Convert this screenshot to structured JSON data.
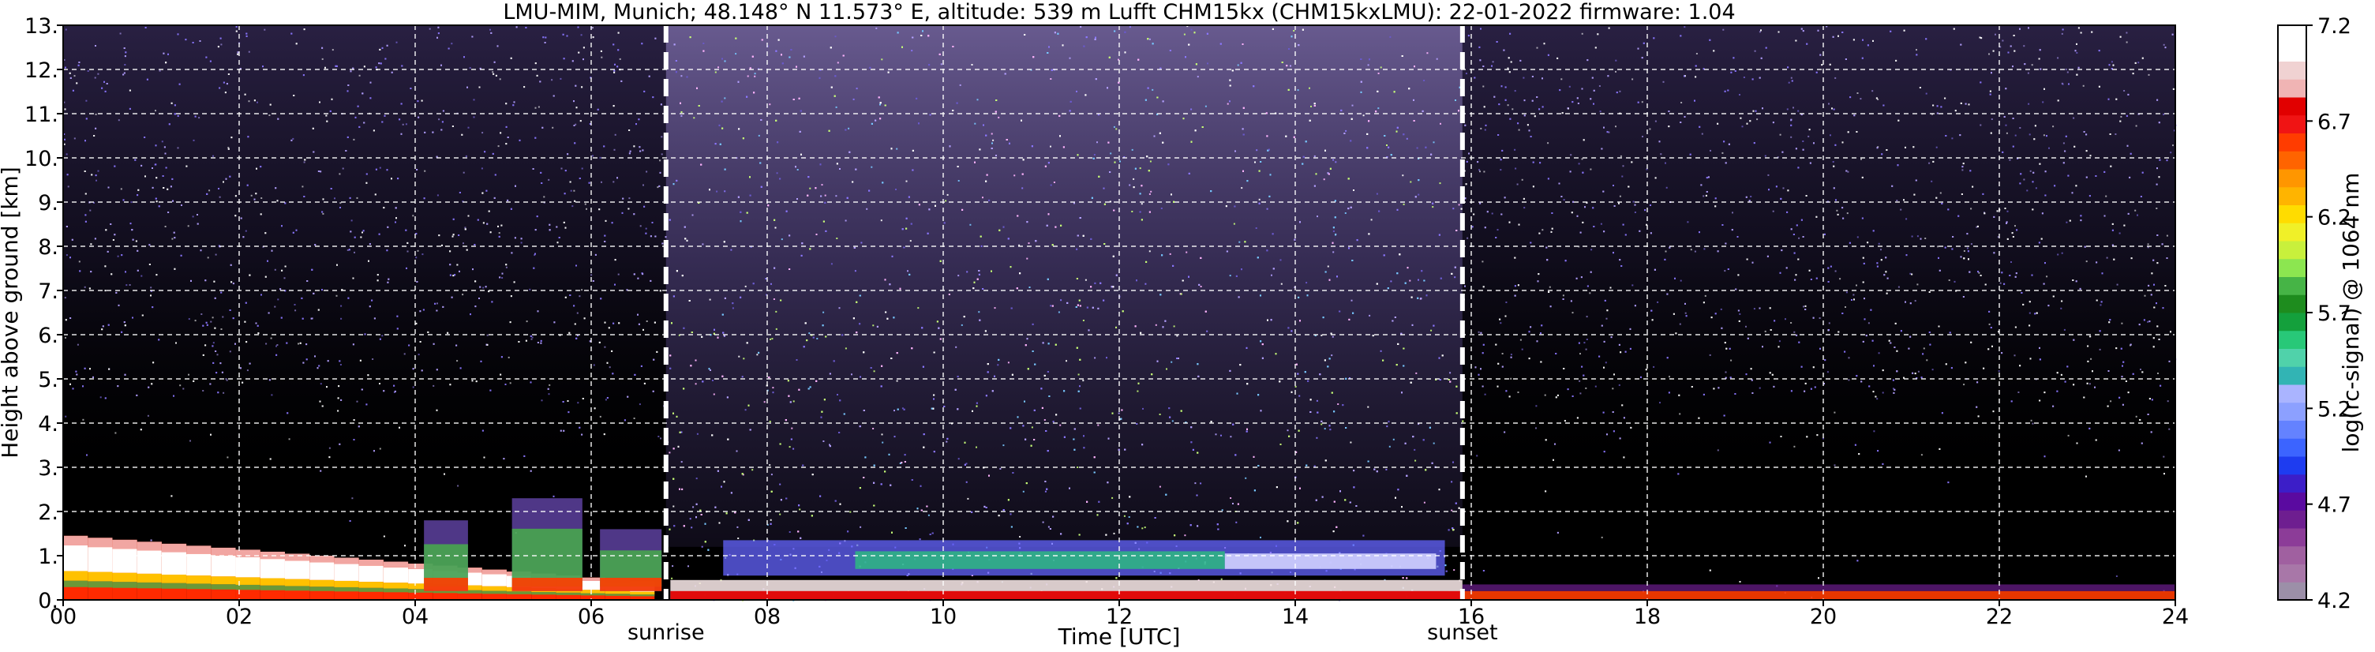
{
  "chart_data": {
    "type": "heatmap",
    "title": "LMU-MIM, Munich; 48.148° N 11.573° E, altitude: 539 m    Lufft CHM15kx (CHM15kxLMU): 22-01-2022    firmware: 1.04",
    "xlabel": "Time [UTC]",
    "ylabel": "Height above ground [km]",
    "xlim": [
      0,
      24
    ],
    "ylim": [
      0,
      13
    ],
    "x_ticks": [
      "00",
      "02",
      "04",
      "06",
      "08",
      "10",
      "12",
      "14",
      "16",
      "18",
      "20",
      "22",
      "24"
    ],
    "y_ticks": [
      "0.",
      "1.",
      "2.",
      "3.",
      "4.",
      "5.",
      "6.",
      "7.",
      "8.",
      "9.",
      "10.",
      "11.",
      "12.",
      "13."
    ],
    "grid": true,
    "background": "#000000",
    "annotations": [
      {
        "label": "sunrise",
        "x": 6.85
      },
      {
        "label": "sunset",
        "x": 15.9
      }
    ],
    "colorbar": {
      "label": "log(rc-signal) @ 1064 nm",
      "min": 4.2,
      "max": 7.2,
      "ticks": [
        "4.2",
        "4.7",
        "5.2",
        "5.7",
        "6.2",
        "6.7",
        "7.2"
      ],
      "colors": [
        "#9c8fa8",
        "#a877a8",
        "#a060a0",
        "#8c3c98",
        "#6e1e90",
        "#5a0aa0",
        "#3c1ec8",
        "#1e3cf0",
        "#3c64ff",
        "#6482ff",
        "#8ca0ff",
        "#aab4ff",
        "#32b4b4",
        "#50d2aa",
        "#28c878",
        "#14a03c",
        "#1e8c1e",
        "#46b446",
        "#8ce650",
        "#c8f03c",
        "#f0f028",
        "#ffdc00",
        "#ffb400",
        "#ff9600",
        "#ff6400",
        "#ff3c00",
        "#f01414",
        "#e10000",
        "#f0b4b4",
        "#f0d2d2",
        "#ffffff",
        "#ffffff"
      ]
    }
  }
}
